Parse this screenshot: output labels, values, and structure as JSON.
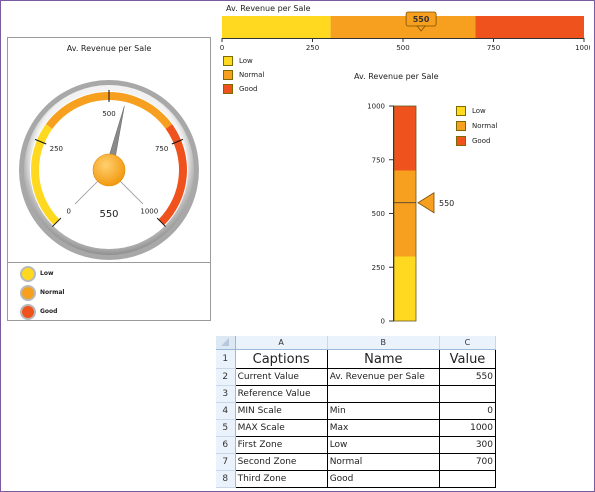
{
  "colors": {
    "low": "#ffd820",
    "normal": "#f7a020",
    "good": "#f0521e",
    "frame": "#7a5aa0"
  },
  "legend": [
    "Low",
    "Normal",
    "Good"
  ],
  "bullet_chart": {
    "title": "Av. Revenue per Sale",
    "value_label": "550",
    "ticks": [
      "0",
      "250",
      "500",
      "750",
      "1000"
    ]
  },
  "gauge_chart": {
    "title": "Av. Revenue per Sale",
    "value_label": "550",
    "ticks": [
      "0",
      "250",
      "500",
      "750",
      "1000"
    ]
  },
  "thermo_chart": {
    "title": "Av. Revenue per Sale",
    "value_label": "550",
    "ticks": [
      "1000",
      "750",
      "500",
      "250",
      "0"
    ]
  },
  "chart_data": [
    {
      "type": "bar",
      "chart": "horizontal-bullet",
      "title": "Av. Revenue per Sale",
      "xlim": [
        0,
        1000
      ],
      "zones": [
        {
          "name": "Low",
          "from": 0,
          "to": 300
        },
        {
          "name": "Normal",
          "from": 300,
          "to": 700
        },
        {
          "name": "Good",
          "from": 700,
          "to": 1000
        }
      ],
      "value": 550,
      "legend_position": "below-left"
    },
    {
      "type": "gauge",
      "title": "Av. Revenue per Sale",
      "range": [
        0,
        1000
      ],
      "zones": [
        {
          "name": "Low",
          "from": 0,
          "to": 300
        },
        {
          "name": "Normal",
          "from": 300,
          "to": 700
        },
        {
          "name": "Good",
          "from": 700,
          "to": 1000
        }
      ],
      "value": 550,
      "legend_position": "bottom"
    },
    {
      "type": "bar",
      "chart": "vertical-bullet",
      "title": "Av. Revenue per Sale",
      "ylim": [
        0,
        1000
      ],
      "zones": [
        {
          "name": "Low",
          "from": 0,
          "to": 300
        },
        {
          "name": "Normal",
          "from": 300,
          "to": 700
        },
        {
          "name": "Good",
          "from": 700,
          "to": 1000
        }
      ],
      "value": 550,
      "legend_position": "right"
    }
  ],
  "sheet": {
    "columns": [
      "A",
      "B",
      "C"
    ],
    "rows": [
      {
        "n": "1",
        "a": "Captions",
        "b": "Name",
        "c": "Value",
        "header": true
      },
      {
        "n": "2",
        "a": "Current Value",
        "b": "Av. Revenue per Sale",
        "c": "550"
      },
      {
        "n": "3",
        "a": "Reference Value",
        "b": "",
        "c": ""
      },
      {
        "n": "4",
        "a": "MIN Scale",
        "b": "Min",
        "c": "0"
      },
      {
        "n": "5",
        "a": "MAX Scale",
        "b": "Max",
        "c": "1000"
      },
      {
        "n": "6",
        "a": "First Zone",
        "b": "Low",
        "c": "300"
      },
      {
        "n": "7",
        "a": "Second Zone",
        "b": "Normal",
        "c": "700"
      },
      {
        "n": "8",
        "a": "Third Zone",
        "b": "Good",
        "c": ""
      }
    ]
  }
}
